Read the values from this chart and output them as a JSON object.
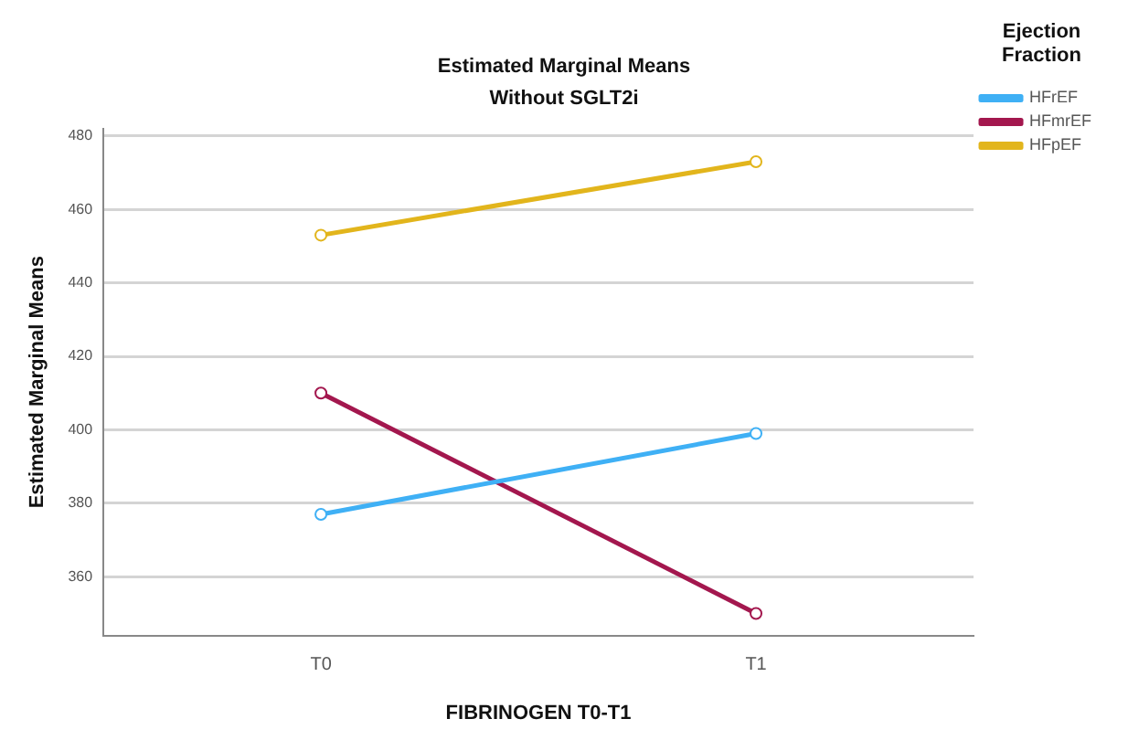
{
  "chart_data": {
    "type": "line",
    "title": "Estimated Marginal Means",
    "subtitle": "Without SGLT2i",
    "xlabel": "FIBRINOGEN T0-T1",
    "ylabel": "Estimated Marginal Means",
    "legend_title": "Ejection Fraction",
    "categories": [
      "T0",
      "T1"
    ],
    "series": [
      {
        "name": "HFrEF",
        "color": "#3fb0f5",
        "values": [
          377,
          399
        ]
      },
      {
        "name": "HFmrEF",
        "color": "#a3174e",
        "values": [
          410,
          350
        ]
      },
      {
        "name": "HFpEF",
        "color": "#e2b51c",
        "values": [
          453,
          473
        ]
      }
    ],
    "ylim": [
      344,
      482
    ],
    "yticks": [
      360,
      380,
      400,
      420,
      440,
      460,
      480
    ],
    "grid": "y",
    "legend": "right",
    "marker": "circle",
    "line_style": "solid"
  }
}
